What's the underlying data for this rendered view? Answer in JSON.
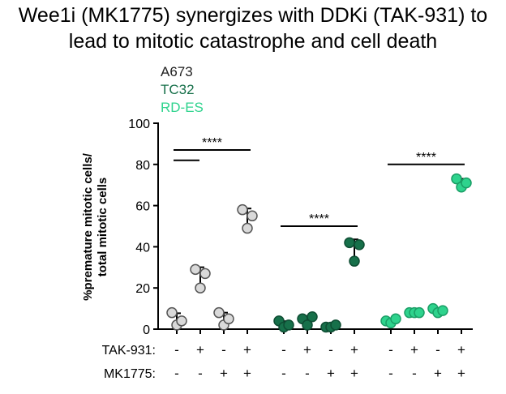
{
  "title_line1": "Wee1i (MK1775) synergizes with DDKi (TAK-931) to",
  "title_line2": "lead to mitotic catastrophe and cell death",
  "chart_data": {
    "type": "scatter",
    "ylabel_line1": "%premature mitotic cells/",
    "ylabel_line2": "total mitotic cells",
    "ylim": [
      0,
      100
    ],
    "yticks": [
      0,
      20,
      40,
      60,
      80,
      100
    ],
    "legend": [
      {
        "name": "A673",
        "color": "#222222"
      },
      {
        "name": "TC32",
        "color": "#17704a"
      },
      {
        "name": "RD-ES",
        "color": "#2ed38d"
      }
    ],
    "row_labels": [
      "TAK-931:",
      "MK1775:"
    ],
    "conditions": [
      {
        "tak": "-",
        "mk": "-"
      },
      {
        "tak": "+",
        "mk": "-"
      },
      {
        "tak": "-",
        "mk": "+"
      },
      {
        "tak": "+",
        "mk": "+"
      }
    ],
    "groups": [
      {
        "name": "A673",
        "color": "#d9d9d9",
        "edge": "#555555",
        "values": [
          [
            8,
            2,
            4
          ],
          [
            29,
            20,
            27
          ],
          [
            8,
            2,
            5
          ],
          [
            58,
            49,
            55
          ]
        ]
      },
      {
        "name": "TC32",
        "color": "#17704a",
        "edge": "#0e4d33",
        "values": [
          [
            4,
            1,
            2
          ],
          [
            5,
            2,
            6
          ],
          [
            1,
            1,
            2
          ],
          [
            42,
            33,
            41
          ]
        ]
      },
      {
        "name": "RD-ES",
        "color": "#2ed38d",
        "edge": "#1a9e66",
        "values": [
          [
            4,
            3,
            5
          ],
          [
            8,
            8,
            8
          ],
          [
            10,
            8,
            9
          ],
          [
            73,
            69,
            71
          ]
        ]
      }
    ],
    "significance": [
      {
        "label": "****",
        "group": 0,
        "from": 0,
        "to": 3,
        "y": 87
      },
      {
        "label": "****",
        "group": 1,
        "from": 0,
        "to": 3,
        "y": 50
      },
      {
        "label": "****",
        "group": 2,
        "from": 0,
        "to": 3,
        "y": 80
      }
    ],
    "extra_line": {
      "group": 0,
      "from": 0,
      "to": 1,
      "y": 82
    }
  }
}
